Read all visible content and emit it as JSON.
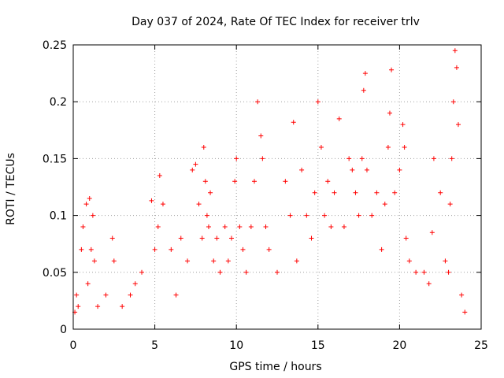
{
  "chart_data": {
    "type": "scatter",
    "title": "Day 037 of 2024, Rate Of TEC Index for receiver trlv",
    "xlabel": "GPS time / hours",
    "ylabel": "ROTI / TECUs",
    "xlim": [
      0,
      25
    ],
    "ylim": [
      0,
      0.25
    ],
    "x_ticks": [
      "0",
      "5",
      "10",
      "15",
      "20",
      "25"
    ],
    "y_ticks": [
      "0",
      "0.05",
      "0.1",
      "0.15",
      "0.2",
      "0.25"
    ],
    "grid": true,
    "marker": "+",
    "color": "#ff0000",
    "series": [
      {
        "name": "ROTI",
        "x": [
          0.1,
          0.2,
          0.3,
          0.5,
          0.6,
          0.8,
          0.9,
          1.0,
          1.1,
          1.2,
          1.3,
          1.5,
          2.0,
          2.4,
          2.5,
          3.0,
          3.5,
          3.8,
          4.2,
          4.8,
          5.0,
          5.2,
          5.3,
          5.5,
          6.0,
          6.3,
          6.6,
          7.0,
          7.3,
          7.5,
          7.7,
          7.9,
          8.0,
          8.1,
          8.2,
          8.3,
          8.4,
          8.6,
          8.8,
          9.0,
          9.3,
          9.5,
          9.7,
          9.9,
          10.0,
          10.2,
          10.4,
          10.6,
          10.9,
          11.1,
          11.3,
          11.5,
          11.6,
          11.8,
          12.0,
          12.5,
          13.0,
          13.3,
          13.5,
          13.7,
          14.0,
          14.3,
          14.6,
          14.8,
          15.0,
          15.2,
          15.4,
          15.6,
          15.8,
          16.0,
          16.3,
          16.6,
          16.9,
          17.1,
          17.3,
          17.5,
          17.7,
          17.8,
          17.9,
          18.0,
          18.3,
          18.6,
          18.9,
          19.1,
          19.3,
          19.4,
          19.5,
          19.7,
          20.0,
          20.2,
          20.3,
          20.4,
          20.6,
          21.0,
          21.5,
          21.8,
          22.0,
          22.1,
          22.5,
          22.8,
          23.0,
          23.1,
          23.2,
          23.3,
          23.4,
          23.5,
          23.6,
          23.8,
          24.0
        ],
        "y": [
          0.015,
          0.03,
          0.02,
          0.07,
          0.09,
          0.11,
          0.04,
          0.115,
          0.07,
          0.1,
          0.06,
          0.02,
          0.03,
          0.08,
          0.06,
          0.02,
          0.03,
          0.04,
          0.05,
          0.113,
          0.07,
          0.09,
          0.135,
          0.11,
          0.07,
          0.03,
          0.08,
          0.06,
          0.14,
          0.145,
          0.11,
          0.08,
          0.16,
          0.13,
          0.1,
          0.09,
          0.12,
          0.06,
          0.08,
          0.05,
          0.09,
          0.06,
          0.08,
          0.13,
          0.15,
          0.09,
          0.07,
          0.05,
          0.09,
          0.13,
          0.2,
          0.17,
          0.15,
          0.09,
          0.07,
          0.05,
          0.13,
          0.1,
          0.182,
          0.06,
          0.14,
          0.1,
          0.08,
          0.12,
          0.2,
          0.16,
          0.1,
          0.13,
          0.09,
          0.12,
          0.185,
          0.09,
          0.15,
          0.14,
          0.12,
          0.1,
          0.15,
          0.21,
          0.225,
          0.14,
          0.1,
          0.12,
          0.07,
          0.11,
          0.16,
          0.19,
          0.228,
          0.12,
          0.14,
          0.18,
          0.16,
          0.08,
          0.06,
          0.05,
          0.05,
          0.04,
          0.085,
          0.15,
          0.12,
          0.06,
          0.05,
          0.11,
          0.15,
          0.2,
          0.245,
          0.23,
          0.18,
          0.03,
          0.015
        ]
      }
    ]
  }
}
